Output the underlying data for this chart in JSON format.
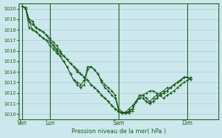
{
  "bg_color": "#cce8ec",
  "grid_color": "#a8d0d8",
  "line_color": "#1a5c1a",
  "marker_color": "#1a5c1a",
  "axis_label_color": "#1a5c1a",
  "tick_label_color": "#1a5c1a",
  "xlabel": "Pression niveau de la mer( hPa )",
  "ylim": [
    1009.5,
    1020.5
  ],
  "yticks": [
    1010,
    1011,
    1012,
    1013,
    1014,
    1015,
    1016,
    1017,
    1018,
    1019,
    1020
  ],
  "day_labels": [
    "Ven",
    "Lun",
    "Sam",
    "Dim"
  ],
  "day_positions": [
    0,
    8,
    28,
    48
  ],
  "xlim": [
    -1,
    57
  ],
  "series1": [
    1020.2,
    1020.1,
    1019.0,
    1018.8,
    1018.2,
    1018.0,
    1017.8,
    1017.5,
    1017.2,
    1016.8,
    1016.5,
    1016.0,
    1015.5,
    1015.2,
    1014.8,
    1014.5,
    1014.0,
    1013.8,
    1013.5,
    1013.2,
    1012.8,
    1012.5,
    1012.2,
    1011.8,
    1011.5,
    1011.2,
    1010.8,
    1010.5,
    1010.2,
    1010.1,
    1010.1,
    1010.3,
    1010.5,
    1011.2,
    1011.5,
    1011.5,
    1011.2,
    1011.0,
    1011.2,
    1011.5,
    1011.8,
    1012.0,
    1012.2,
    1012.5,
    1012.8,
    1013.0,
    1013.2,
    1013.5,
    1013.5,
    1013.3
  ],
  "series2": [
    1020.2,
    1020.1,
    1018.8,
    1018.5,
    1018.2,
    1018.0,
    1017.8,
    1017.5,
    1017.0,
    1016.5,
    1016.0,
    1015.5,
    1015.0,
    1014.5,
    1013.8,
    1013.2,
    1013.0,
    1012.8,
    1013.2,
    1014.5,
    1014.5,
    1014.2,
    1013.8,
    1013.2,
    1012.8,
    1012.5,
    1012.2,
    1011.8,
    1010.5,
    1010.2,
    1010.1,
    1010.1,
    1010.3,
    1011.2,
    1011.5,
    1011.5,
    1011.2,
    1011.0,
    1011.2,
    1011.5,
    1011.8,
    1012.0,
    1012.2,
    1012.5,
    1012.8,
    1013.0,
    1013.2,
    1013.5,
    1013.5,
    1013.3
  ],
  "series3": [
    1020.2,
    1020.0,
    1018.8,
    1018.0,
    1017.8,
    1017.5,
    1017.2,
    1017.0,
    1016.5,
    1016.2,
    1015.8,
    1015.5,
    1015.0,
    1014.5,
    1013.8,
    1013.2,
    1012.8,
    1012.5,
    1012.8,
    1014.2,
    1014.5,
    1014.2,
    1013.8,
    1013.0,
    1012.5,
    1012.2,
    1011.8,
    1011.5,
    1010.3,
    1010.1,
    1010.1,
    1010.2,
    1010.5,
    1011.2,
    1011.8,
    1011.8,
    1011.5,
    1011.2,
    1011.5,
    1011.8,
    1012.0,
    1012.2,
    1012.5,
    1012.5,
    1012.8,
    1013.0,
    1013.2,
    1013.5,
    1013.5,
    1013.3
  ],
  "series4": [
    1020.2,
    1020.0,
    1018.2,
    1018.0,
    1017.8,
    1017.5,
    1017.2,
    1017.0,
    1016.8,
    1016.5,
    1016.2,
    1015.8,
    1015.5,
    1015.2,
    1014.8,
    1014.5,
    1014.2,
    1013.8,
    1013.5,
    1013.2,
    1012.8,
    1012.5,
    1012.2,
    1011.8,
    1011.5,
    1011.2,
    1010.8,
    1010.5,
    1010.2,
    1010.1,
    1010.2,
    1010.5,
    1010.8,
    1011.2,
    1011.5,
    1011.8,
    1012.0,
    1012.2,
    1012.2,
    1012.0,
    1011.8,
    1011.5,
    1011.8,
    1012.0,
    1012.2,
    1012.5,
    1012.8,
    1013.0,
    1013.2,
    1013.5
  ]
}
